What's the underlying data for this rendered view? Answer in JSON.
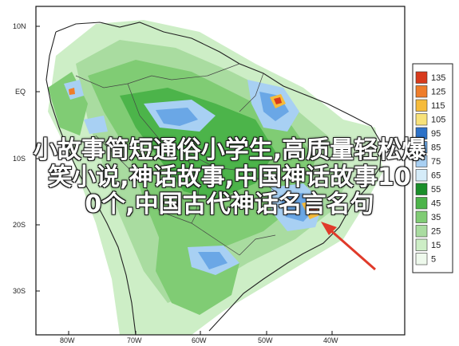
{
  "map": {
    "lat_labels": [
      "10N",
      "EQ",
      "10S",
      "20S",
      "30S"
    ],
    "lon_labels": [
      "80W",
      "70W",
      "60W",
      "50W",
      "40W"
    ]
  },
  "legend": {
    "values": [
      "135",
      "125",
      "115",
      "105",
      "95",
      "85",
      "75",
      "65",
      "55",
      "45",
      "35",
      "25",
      "15",
      "5"
    ],
    "colors": [
      "#d83a1c",
      "#ef7d2a",
      "#f6bb3a",
      "#f8e27a",
      "#2d72c8",
      "#6aa7e6",
      "#a8d0f3",
      "#d5ecf9",
      "#1a8f2a",
      "#4cb44a",
      "#80cc74",
      "#a9dca0",
      "#cdeec6",
      "#eef9ec"
    ]
  },
  "overlay": {
    "line1": "小故事简短通俗小学生,高质量轻松爆",
    "line2": "笑小说,神话故事,中国神话故事10",
    "line3": "0个,中国古代神话名言名句"
  }
}
